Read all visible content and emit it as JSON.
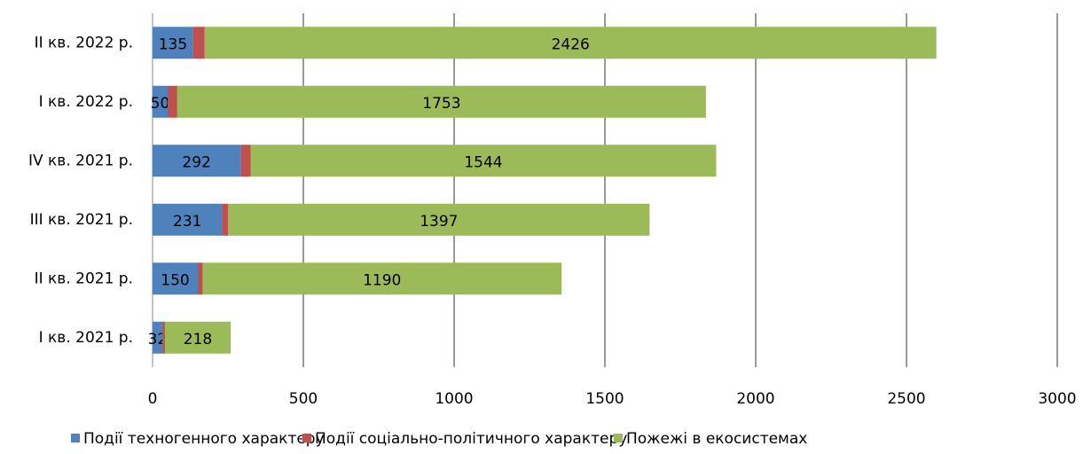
{
  "chart_data": {
    "type": "stacked_barh",
    "categories": [
      "ІІ кв. 2022 р.",
      "І кв. 2022 р.",
      "ІV кв. 2021 р.",
      "ІІІ кв. 2021 р.",
      "ІІ кв. 2021 р.",
      "І кв. 2021 р."
    ],
    "series": [
      {
        "name": "Події техногенного характеру",
        "color": "#4f81bd",
        "values": [
          135,
          50,
          292,
          231,
          150,
          32
        ]
      },
      {
        "name": "Події соціально-політичного характеру",
        "color": "#c0504d",
        "values": [
          38,
          32,
          33,
          20,
          16,
          9
        ]
      },
      {
        "name": "Пожежі в екосистемах",
        "color": "#9bbb59",
        "values": [
          2426,
          1753,
          1544,
          1397,
          1190,
          218
        ]
      }
    ],
    "xlim": [
      0,
      3000
    ],
    "xticks": [
      0,
      500,
      1000,
      1500,
      2000,
      2500,
      3000
    ],
    "grid": true,
    "legend": "bottom"
  }
}
